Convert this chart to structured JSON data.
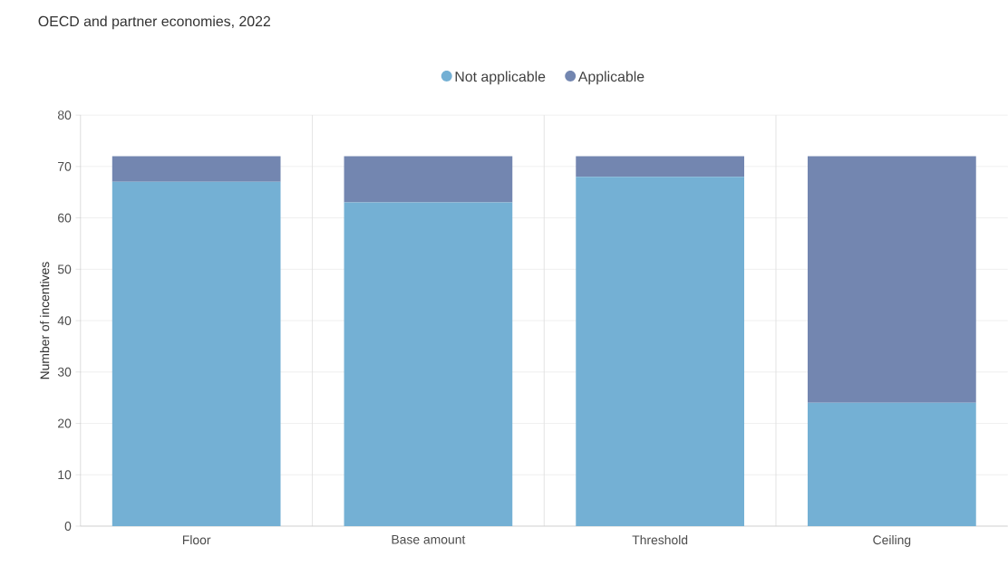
{
  "chart_data": {
    "type": "bar",
    "title": "OECD and partner economies, 2022",
    "ylabel": "Number of incentives",
    "categories": [
      "Floor",
      "Base amount",
      "Threshold",
      "Ceiling"
    ],
    "series": [
      {
        "name": "Not applicable",
        "color": "#74b0d4",
        "values": [
          67,
          63,
          68,
          24
        ]
      },
      {
        "name": "Applicable",
        "color": "#7386b0",
        "values": [
          5,
          9,
          4,
          48
        ]
      }
    ],
    "stacked": true,
    "ylim": [
      0,
      80
    ],
    "yticks": [
      0,
      10,
      20,
      30,
      40,
      50,
      60,
      70,
      80
    ],
    "grid": true,
    "legend": "top"
  }
}
